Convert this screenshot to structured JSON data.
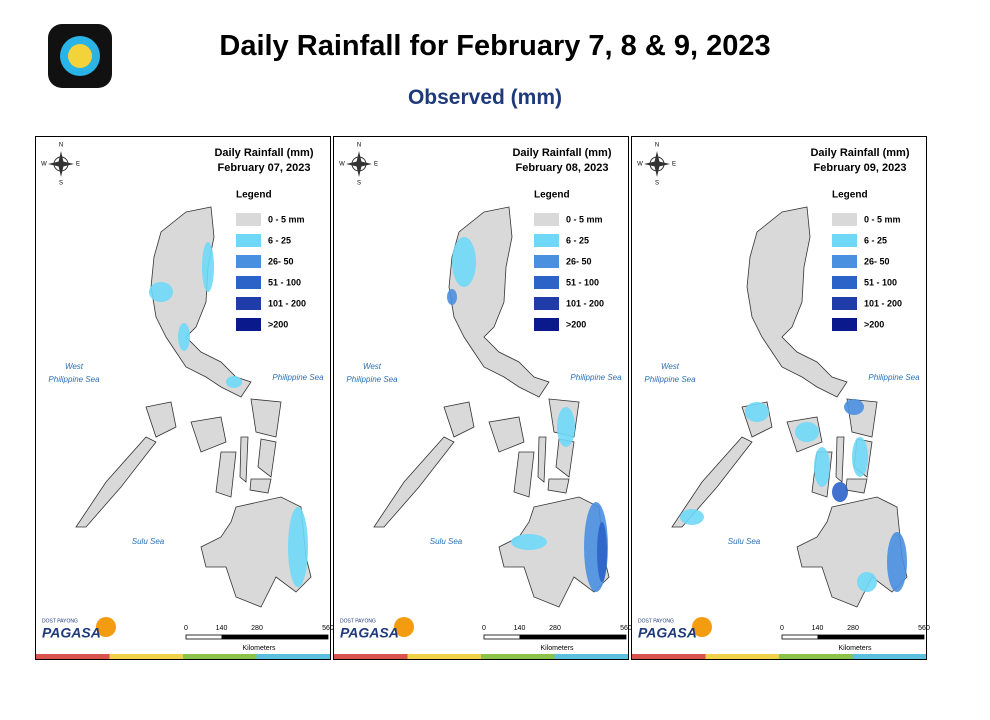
{
  "header": {
    "title": "Daily Rainfall for February 7, 8 & 9, 2023",
    "subtitle": "Observed (mm)"
  },
  "maps": [
    {
      "title": "Daily Rainfall (mm)",
      "date": "February 07, 2023"
    },
    {
      "title": "Daily Rainfall (mm)",
      "date": "February 08, 2023"
    },
    {
      "title": "Daily Rainfall (mm)",
      "date": "February 09, 2023"
    }
  ],
  "legend": {
    "title": "Legend",
    "items": [
      {
        "label": "0 - 5 mm",
        "color": "#d9d9d9"
      },
      {
        "label": "6 - 25",
        "color": "#6fd8f6"
      },
      {
        "label": "26- 50",
        "color": "#4a90e0"
      },
      {
        "label": "51 - 100",
        "color": "#2c63c8"
      },
      {
        "label": "101 - 200",
        "color": "#1f3ca8"
      },
      {
        "label": ">200",
        "color": "#0a1a8c"
      }
    ]
  },
  "seas": {
    "west": [
      "West",
      "Philippine Sea"
    ],
    "east": "Philippine Sea",
    "south": "Sulu Sea"
  },
  "compass": {
    "n": "N",
    "e": "E",
    "s": "S",
    "w": "W"
  },
  "scale": {
    "ticks": [
      0,
      140,
      280,
      560
    ],
    "unit": "Kilometers"
  },
  "brand": {
    "small": "DOST PAYONG",
    "name": "PAGASA"
  }
}
